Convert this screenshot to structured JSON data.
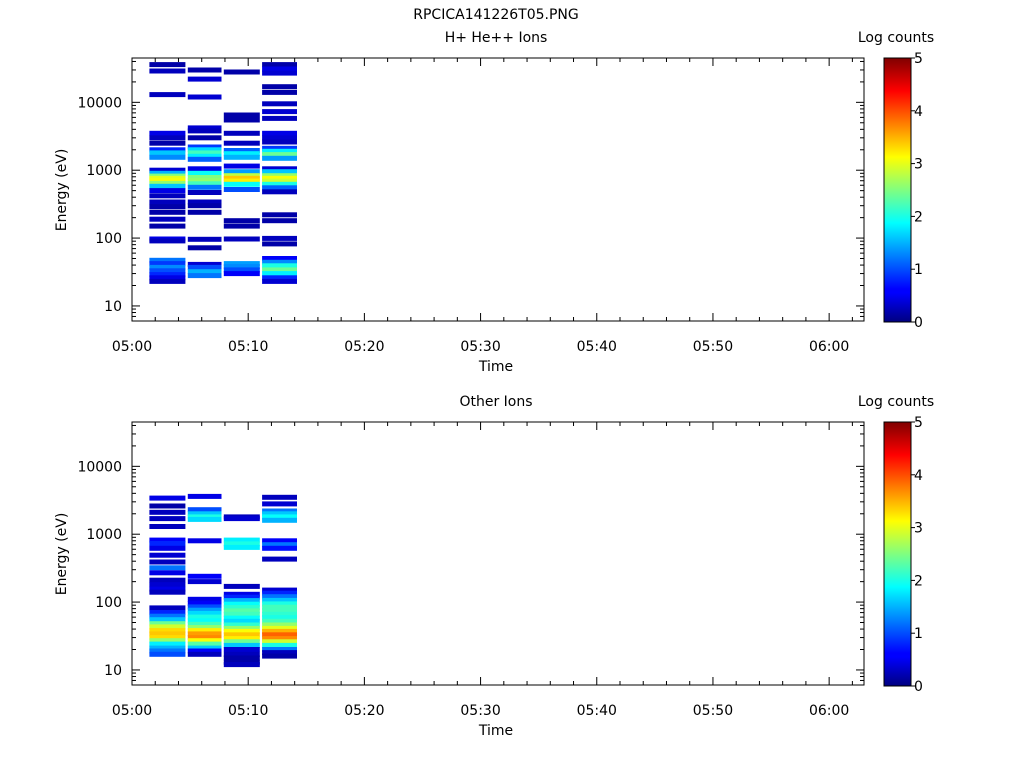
{
  "figure_title": "RPCICA141226T05.PNG",
  "chart_data": [
    {
      "type": "heatmap",
      "title": "H+ He++ Ions",
      "xlabel": "Time",
      "ylabel": "Energy (eV)",
      "yscale": "log",
      "ylim": [
        6,
        45000
      ],
      "xlim": [
        "05:00",
        "06:03"
      ],
      "xticks": [
        "05:00",
        "05:10",
        "05:20",
        "05:30",
        "05:40",
        "05:50",
        "06:00"
      ],
      "yticks": [
        "10",
        "100",
        "1000",
        "10000"
      ],
      "grid": false,
      "colorbar": {
        "label": "Log counts",
        "range": [
          0,
          5
        ],
        "ticks": [
          "0",
          "1",
          "2",
          "3",
          "4",
          "5"
        ],
        "colormap": "jet"
      },
      "columns": [
        {
          "t_start": "05:01.5",
          "t_end": "05:04.6",
          "cells": [
            [
              36000,
              0.2
            ],
            [
              29000,
              0.3
            ],
            [
              13000,
              0.3
            ],
            [
              3500,
              0.5
            ],
            [
              3000,
              0.3
            ],
            [
              2500,
              0.2
            ],
            [
              2000,
              0.8
            ],
            [
              1800,
              1.6
            ],
            [
              1550,
              1.3
            ],
            [
              1000,
              0.4
            ],
            [
              900,
              1.5
            ],
            [
              820,
              2.5
            ],
            [
              760,
              3.0
            ],
            [
              700,
              3.1
            ],
            [
              640,
              2.6
            ],
            [
              580,
              1.6
            ],
            [
              500,
              0.5
            ],
            [
              420,
              0.3
            ],
            [
              340,
              0.3
            ],
            [
              290,
              0.2
            ],
            [
              240,
              0.2
            ],
            [
              190,
              0.3
            ],
            [
              150,
              0.2
            ],
            [
              97,
              0.5
            ],
            [
              91,
              0.3
            ],
            [
              47,
              1.2
            ],
            [
              42,
              0.9
            ],
            [
              37,
              1.3
            ],
            [
              33,
              1.0
            ],
            [
              29,
              0.8
            ],
            [
              26,
              0.5
            ],
            [
              23,
              0.3
            ]
          ]
        },
        {
          "t_start": "05:04.8",
          "t_end": "05:07.7",
          "cells": [
            [
              30000,
              0.2
            ],
            [
              22000,
              0.4
            ],
            [
              12000,
              0.4
            ],
            [
              4200,
              0.4
            ],
            [
              3800,
              0.3
            ],
            [
              3000,
              0.2
            ],
            [
              2200,
              0.9
            ],
            [
              2000,
              1.7
            ],
            [
              1800,
              2.2
            ],
            [
              1600,
              1.8
            ],
            [
              1450,
              1.1
            ],
            [
              1050,
              0.5
            ],
            [
              900,
              1.9
            ],
            [
              780,
              2.5
            ],
            [
              700,
              2.6
            ],
            [
              630,
              2.2
            ],
            [
              560,
              1.2
            ],
            [
              470,
              0.3
            ],
            [
              340,
              0.3
            ],
            [
              300,
              0.2
            ],
            [
              240,
              0.2
            ],
            [
              96,
              0.3
            ],
            [
              72,
              0.2
            ],
            [
              41,
              0.4
            ],
            [
              37,
              1.0
            ],
            [
              32,
              1.5
            ],
            [
              28,
              1.2
            ]
          ]
        },
        {
          "t_start": "05:07.9",
          "t_end": "05:11.0",
          "cells": [
            [
              28000,
              0.2
            ],
            [
              6500,
              0.2
            ],
            [
              5500,
              0.2
            ],
            [
              3500,
              0.3
            ],
            [
              2500,
              0.3
            ],
            [
              1950,
              1.1
            ],
            [
              1750,
              1.8
            ],
            [
              1550,
              1.5
            ],
            [
              1150,
              0.5
            ],
            [
              950,
              1.4
            ],
            [
              830,
              2.8
            ],
            [
              760,
              3.4
            ],
            [
              690,
              3.2
            ],
            [
              620,
              1.9
            ],
            [
              520,
              1.0
            ],
            [
              180,
              0.2
            ],
            [
              150,
              0.2
            ],
            [
              97,
              0.3
            ],
            [
              42,
              1.4
            ],
            [
              38,
              1.3
            ],
            [
              34,
              1.0
            ],
            [
              30,
              0.6
            ]
          ]
        },
        {
          "t_start": "05:11.2",
          "t_end": "05:14.2",
          "cells": [
            [
              36000,
              0.2
            ],
            [
              31000,
              0.5
            ],
            [
              27000,
              0.4
            ],
            [
              17000,
              0.2
            ],
            [
              14000,
              0.2
            ],
            [
              9500,
              0.3
            ],
            [
              7300,
              0.4
            ],
            [
              5800,
              0.3
            ],
            [
              3500,
              0.5
            ],
            [
              3000,
              0.4
            ],
            [
              2600,
              0.3
            ],
            [
              2100,
              0.9
            ],
            [
              1900,
              1.8
            ],
            [
              1700,
              2.4
            ],
            [
              1500,
              1.4
            ],
            [
              1050,
              0.4
            ],
            [
              950,
              1.6
            ],
            [
              830,
              2.6
            ],
            [
              760,
              3.1
            ],
            [
              690,
              2.9
            ],
            [
              620,
              2.0
            ],
            [
              550,
              1.1
            ],
            [
              480,
              0.3
            ],
            [
              220,
              0.2
            ],
            [
              180,
              0.2
            ],
            [
              99,
              0.3
            ],
            [
              82,
              0.2
            ],
            [
              50,
              0.6
            ],
            [
              44,
              1.3
            ],
            [
              39,
              2.0
            ],
            [
              34,
              2.4
            ],
            [
              30,
              1.8
            ],
            [
              26,
              0.8
            ],
            [
              23,
              0.4
            ]
          ]
        }
      ]
    },
    {
      "type": "heatmap",
      "title": "Other Ions",
      "xlabel": "Time",
      "ylabel": "Energy (eV)",
      "yscale": "log",
      "ylim": [
        6,
        45000
      ],
      "xlim": [
        "05:00",
        "06:03"
      ],
      "xticks": [
        "05:00",
        "05:10",
        "05:20",
        "05:30",
        "05:40",
        "05:50",
        "06:00"
      ],
      "yticks": [
        "10",
        "100",
        "1000",
        "10000"
      ],
      "grid": false,
      "colorbar": {
        "label": "Log counts",
        "range": [
          0,
          5
        ],
        "ticks": [
          "0",
          "1",
          "2",
          "3",
          "4",
          "5"
        ],
        "colormap": "jet"
      },
      "columns": [
        {
          "t_start": "05:01.5",
          "t_end": "05:04.6",
          "cells": [
            [
              3400,
              0.5
            ],
            [
              2600,
              0.2
            ],
            [
              2100,
              0.3
            ],
            [
              1700,
              0.3
            ],
            [
              1300,
              0.3
            ],
            [
              820,
              0.6
            ],
            [
              730,
              0.8
            ],
            [
              620,
              0.5
            ],
            [
              490,
              0.4
            ],
            [
              390,
              0.3
            ],
            [
              320,
              1.2
            ],
            [
              270,
              0.5
            ],
            [
              210,
              0.3
            ],
            [
              180,
              0.4
            ],
            [
              155,
              0.5
            ],
            [
              140,
              0.3
            ],
            [
              82,
              0.3
            ],
            [
              70,
              0.8
            ],
            [
              62,
              1.2
            ],
            [
              55,
              1.6
            ],
            [
              48,
              2.4
            ],
            [
              43,
              2.9
            ],
            [
              38,
              3.3
            ],
            [
              34,
              3.4
            ],
            [
              30,
              3.3
            ],
            [
              27,
              2.6
            ],
            [
              24,
              1.8
            ],
            [
              21,
              1.5
            ],
            [
              19,
              1.2
            ],
            [
              17,
              1.0
            ]
          ]
        },
        {
          "t_start": "05:04.8",
          "t_end": "05:07.7",
          "cells": [
            [
              3600,
              0.5
            ],
            [
              2300,
              1.0
            ],
            [
              2000,
              1.6
            ],
            [
              1800,
              2.0
            ],
            [
              1650,
              1.7
            ],
            [
              800,
              0.5
            ],
            [
              240,
              0.6
            ],
            [
              200,
              0.4
            ],
            [
              110,
              0.5
            ],
            [
              95,
              0.6
            ],
            [
              85,
              1.0
            ],
            [
              76,
              1.4
            ],
            [
              68,
              1.7
            ],
            [
              60,
              2.0
            ],
            [
              53,
              1.9
            ],
            [
              47,
              2.2
            ],
            [
              42,
              2.6
            ],
            [
              38,
              3.2
            ],
            [
              34,
              3.6
            ],
            [
              30,
              3.7
            ],
            [
              27,
              3.1
            ],
            [
              24,
              2.3
            ],
            [
              21,
              1.6
            ],
            [
              19,
              0.6
            ],
            [
              17,
              0.3
            ]
          ]
        },
        {
          "t_start": "05:07.9",
          "t_end": "05:11.0",
          "cells": [
            [
              1800,
              0.3
            ],
            [
              1700,
              0.4
            ],
            [
              820,
              1.8
            ],
            [
              720,
              2.0
            ],
            [
              640,
              1.8
            ],
            [
              170,
              0.3
            ],
            [
              130,
              0.5
            ],
            [
              118,
              0.8
            ],
            [
              105,
              1.5
            ],
            [
              93,
              1.9
            ],
            [
              83,
              2.1
            ],
            [
              74,
              2.3
            ],
            [
              66,
              2.2
            ],
            [
              58,
              1.9
            ],
            [
              52,
              1.7
            ],
            [
              46,
              2.1
            ],
            [
              41,
              2.6
            ],
            [
              37,
              3.1
            ],
            [
              33,
              3.4
            ],
            [
              29,
              3.2
            ],
            [
              26,
              2.4
            ],
            [
              23,
              1.6
            ],
            [
              20,
              0.4
            ],
            [
              17,
              0.3
            ],
            [
              15,
              0.2
            ],
            [
              13,
              0.2
            ],
            [
              12,
              0.3
            ]
          ]
        },
        {
          "t_start": "05:11.2",
          "t_end": "05:14.2",
          "cells": [
            [
              3500,
              0.3
            ],
            [
              2800,
              0.4
            ],
            [
              2200,
              1.2
            ],
            [
              2000,
              1.6
            ],
            [
              1800,
              1.9
            ],
            [
              1600,
              1.5
            ],
            [
              800,
              0.6
            ],
            [
              700,
              1.2
            ],
            [
              620,
              0.7
            ],
            [
              430,
              0.3
            ],
            [
              150,
              0.4
            ],
            [
              135,
              0.8
            ],
            [
              120,
              1.2
            ],
            [
              106,
              1.6
            ],
            [
              94,
              2.0
            ],
            [
              84,
              2.2
            ],
            [
              75,
              2.2
            ],
            [
              66,
              2.1
            ],
            [
              59,
              2.0
            ],
            [
              52,
              2.2
            ],
            [
              46,
              2.6
            ],
            [
              41,
              3.0
            ],
            [
              37,
              3.5
            ],
            [
              33,
              3.9
            ],
            [
              29,
              3.7
            ],
            [
              26,
              2.9
            ],
            [
              23,
              2.0
            ],
            [
              20,
              1.2
            ],
            [
              18,
              0.3
            ],
            [
              16,
              0.2
            ]
          ]
        }
      ]
    }
  ]
}
